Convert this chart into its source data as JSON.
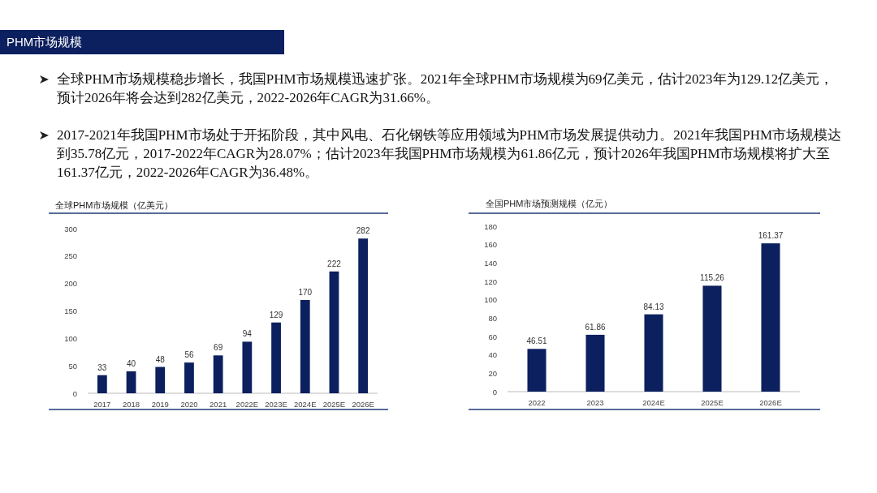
{
  "chart_data": [
    {
      "type": "other",
      "title": "PHM市场规模",
      "annotations": [
        "全球PHM市场规模稳步增长，我国PHM市场规模迅速扩张。2021年全球PHM市场规模为69亿美元，估计2023年为129.12亿美元，预计2026年将会达到282亿美元，2022-2026年CAGR为31.66%。",
        "2017-2021年我国PHM市场处于开拓阶段，其中风电、石化钢铁等应用领域为PHM市场发展提供动力。2021年我国PHM市场规模达到35.78亿元，2017-2022年CAGR为28.07%；估计2023年我国PHM市场规模为61.86亿元，预计2026年我国PHM市场规模将扩大至161.37亿元，2022-2026年CAGR为36.48%。"
      ]
    },
    {
      "type": "bar",
      "title": "全球PHM市场规模（亿美元）",
      "categories": [
        "2017",
        "2018",
        "2019",
        "2020",
        "2021",
        "2022E",
        "2023E",
        "2024E",
        "2025E",
        "2026E"
      ],
      "values": [
        33,
        40,
        48,
        56,
        69,
        94,
        129,
        170,
        222,
        282
      ],
      "color": "#0c1f5e",
      "ylim": [
        0,
        300
      ],
      "yticks": [
        0,
        50,
        100,
        150,
        200,
        250,
        300
      ],
      "data_labels": true
    },
    {
      "type": "bar",
      "title": "全国PHM市场预测规模（亿元）",
      "categories": [
        "2022",
        "2023",
        "2024E",
        "2025E",
        "2026E"
      ],
      "values": [
        46.51,
        61.86,
        84.13,
        115.26,
        161.37
      ],
      "color": "#0c1f5e",
      "ylim": [
        0,
        180
      ],
      "yticks": [
        0,
        20,
        40,
        60,
        80,
        100,
        120,
        140,
        160,
        180
      ],
      "data_labels": true
    }
  ]
}
